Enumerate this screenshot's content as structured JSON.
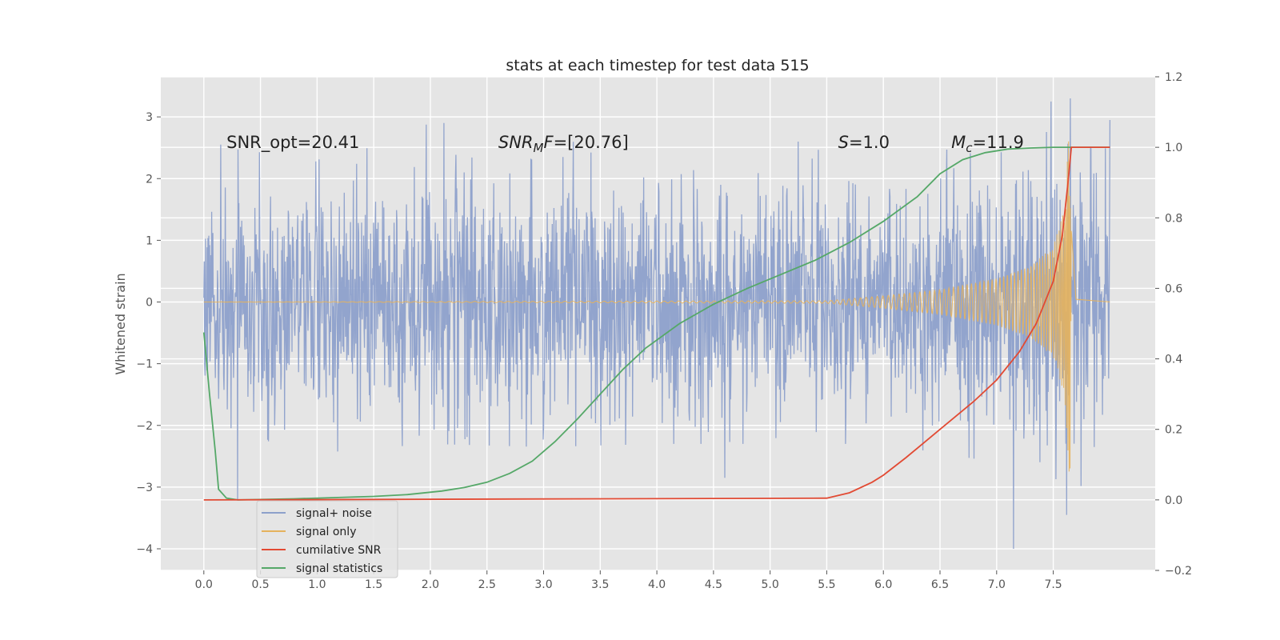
{
  "chart_data": {
    "type": "line",
    "title": "stats at each timestep for test data 515",
    "xlabel": "",
    "ylabel": "Whitened strain",
    "y2label": "",
    "xlim": [
      -0.38,
      8.4
    ],
    "ylim": [
      -4.35,
      3.65
    ],
    "y2lim": [
      -0.2,
      1.2
    ],
    "x_ticks": [
      0.0,
      0.5,
      1.0,
      1.5,
      2.0,
      2.5,
      3.0,
      3.5,
      4.0,
      4.5,
      5.0,
      5.5,
      6.0,
      6.5,
      7.0,
      7.5
    ],
    "x_tick_labels": [
      "0.0",
      "0.5",
      "1.0",
      "1.5",
      "2.0",
      "2.5",
      "3.0",
      "3.5",
      "4.0",
      "4.5",
      "5.0",
      "5.5",
      "6.0",
      "6.5",
      "7.0",
      "7.5"
    ],
    "y_ticks": [
      -4,
      -3,
      -2,
      -1,
      0,
      1,
      2,
      3
    ],
    "y_tick_labels": [
      "−4",
      "−3",
      "−2",
      "−1",
      "0",
      "1",
      "2",
      "3"
    ],
    "y2_ticks": [
      -0.2,
      0.0,
      0.2,
      0.4,
      0.6,
      0.8,
      1.0,
      1.2
    ],
    "y2_tick_labels": [
      "−0.2",
      "0.0",
      "0.2",
      "0.4",
      "0.6",
      "0.8",
      "1.0",
      "1.2"
    ],
    "grid": true,
    "legend_position": "lower-left",
    "annotations": [
      {
        "id": "snr-opt",
        "x": 0.2,
        "y": 2.6,
        "text": "SNR_opt=20.41"
      },
      {
        "id": "snr-mf",
        "x": 2.6,
        "y": 2.6,
        "base": "SNR",
        "sub": "M",
        "rest": "F=[20.76]"
      },
      {
        "id": "spin",
        "x": 5.6,
        "y": 2.6,
        "italic": "S",
        "rest": "=1.0"
      },
      {
        "id": "chirp-mass",
        "x": 6.6,
        "y": 2.6,
        "base": "M",
        "sub": "c",
        "rest": "=11.9"
      }
    ],
    "series": [
      {
        "name": "signal+ noise",
        "axis": "left",
        "color": "#8da0cb",
        "envelope": {
          "x": [
            0.0,
            1.0,
            2.0,
            3.0,
            4.0,
            5.0,
            6.0,
            7.0,
            7.5,
            7.65,
            8.0
          ],
          "max": [
            2.55,
            2.3,
            2.9,
            2.7,
            2.3,
            2.6,
            2.6,
            2.9,
            3.2,
            3.3,
            2.9
          ],
          "min": [
            -2.0,
            -2.45,
            -2.3,
            -2.35,
            -2.3,
            -2.3,
            -2.3,
            -2.6,
            -3.1,
            -3.5,
            -1.6
          ]
        },
        "peaks": [
          {
            "x": 0.3,
            "y": -3.2
          },
          {
            "x": 0.15,
            "y": 2.55
          },
          {
            "x": 2.12,
            "y": 2.9
          },
          {
            "x": 4.6,
            "y": -2.85
          },
          {
            "x": 7.15,
            "y": -4.0
          },
          {
            "x": 7.48,
            "y": 3.25
          },
          {
            "x": 7.65,
            "y": 3.3
          },
          {
            "x": 7.62,
            "y": -3.45
          },
          {
            "x": 8.0,
            "y": 2.95
          }
        ]
      },
      {
        "name": "signal only",
        "axis": "left",
        "color": "#e5b25d",
        "envelope": {
          "x": [
            0.0,
            5.5,
            6.0,
            6.5,
            7.0,
            7.3,
            7.5,
            7.6,
            7.64,
            7.66,
            7.7,
            8.0
          ],
          "amplitude": [
            0.0,
            0.02,
            0.1,
            0.2,
            0.38,
            0.58,
            0.9,
            1.5,
            2.8,
            2.6,
            0.1,
            0.0
          ]
        }
      },
      {
        "name": "cumilative SNR",
        "axis": "right",
        "color": "#e24a33",
        "x": [
          0.0,
          5.5,
          5.7,
          5.9,
          6.0,
          6.2,
          6.5,
          6.8,
          7.0,
          7.2,
          7.35,
          7.5,
          7.58,
          7.63,
          7.66,
          8.0
        ],
        "y": [
          0.0,
          0.005,
          0.02,
          0.05,
          0.07,
          0.12,
          0.2,
          0.28,
          0.34,
          0.42,
          0.5,
          0.62,
          0.75,
          0.9,
          1.0,
          1.0
        ]
      },
      {
        "name": "signal statistics",
        "axis": "right",
        "color": "#55a868",
        "x": [
          0.0,
          0.05,
          0.1,
          0.13,
          0.2,
          0.3,
          0.8,
          1.5,
          1.8,
          2.1,
          2.3,
          2.5,
          2.7,
          2.9,
          3.1,
          3.3,
          3.5,
          3.7,
          3.9,
          4.2,
          4.5,
          4.8,
          5.1,
          5.4,
          5.7,
          6.0,
          6.3,
          6.5,
          6.7,
          6.9,
          7.1,
          7.3,
          7.5,
          7.7,
          8.0
        ],
        "y": [
          0.475,
          0.3,
          0.14,
          0.03,
          0.005,
          0.0,
          0.003,
          0.01,
          0.015,
          0.025,
          0.035,
          0.05,
          0.075,
          0.11,
          0.165,
          0.23,
          0.3,
          0.37,
          0.43,
          0.5,
          0.555,
          0.6,
          0.64,
          0.68,
          0.73,
          0.79,
          0.86,
          0.925,
          0.965,
          0.985,
          0.995,
          0.998,
          1.0,
          1.0,
          1.0
        ]
      }
    ]
  }
}
